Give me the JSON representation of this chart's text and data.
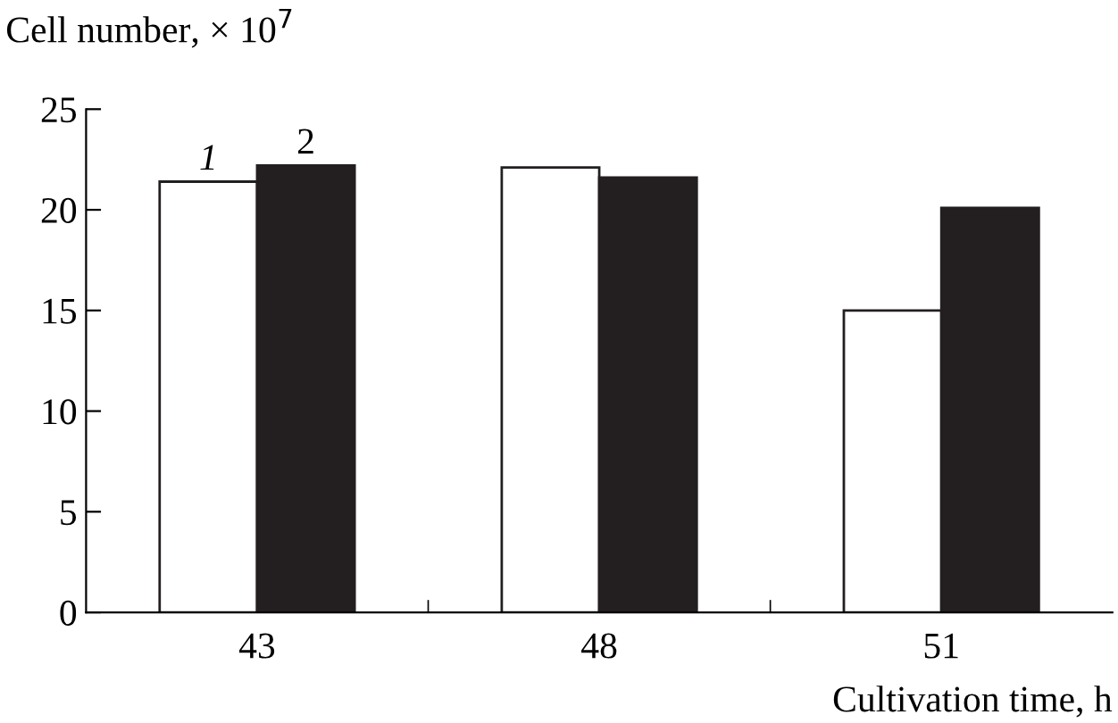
{
  "chart_data": {
    "type": "bar",
    "ylabel": "Cell number, × 10$^{7}$",
    "xlabel": "Cultivation time, h",
    "categories": [
      "43",
      "48",
      "51"
    ],
    "series": [
      {
        "name": "1",
        "color": "#ffffff",
        "values": [
          21.4,
          22.1,
          15.0
        ]
      },
      {
        "name": "2",
        "color": "#231f20",
        "values": [
          22.2,
          21.6,
          20.1
        ]
      }
    ],
    "ylim": [
      0,
      25
    ],
    "yticks": [
      0,
      5,
      10,
      15,
      20,
      25
    ],
    "grid": false,
    "legend": false
  }
}
